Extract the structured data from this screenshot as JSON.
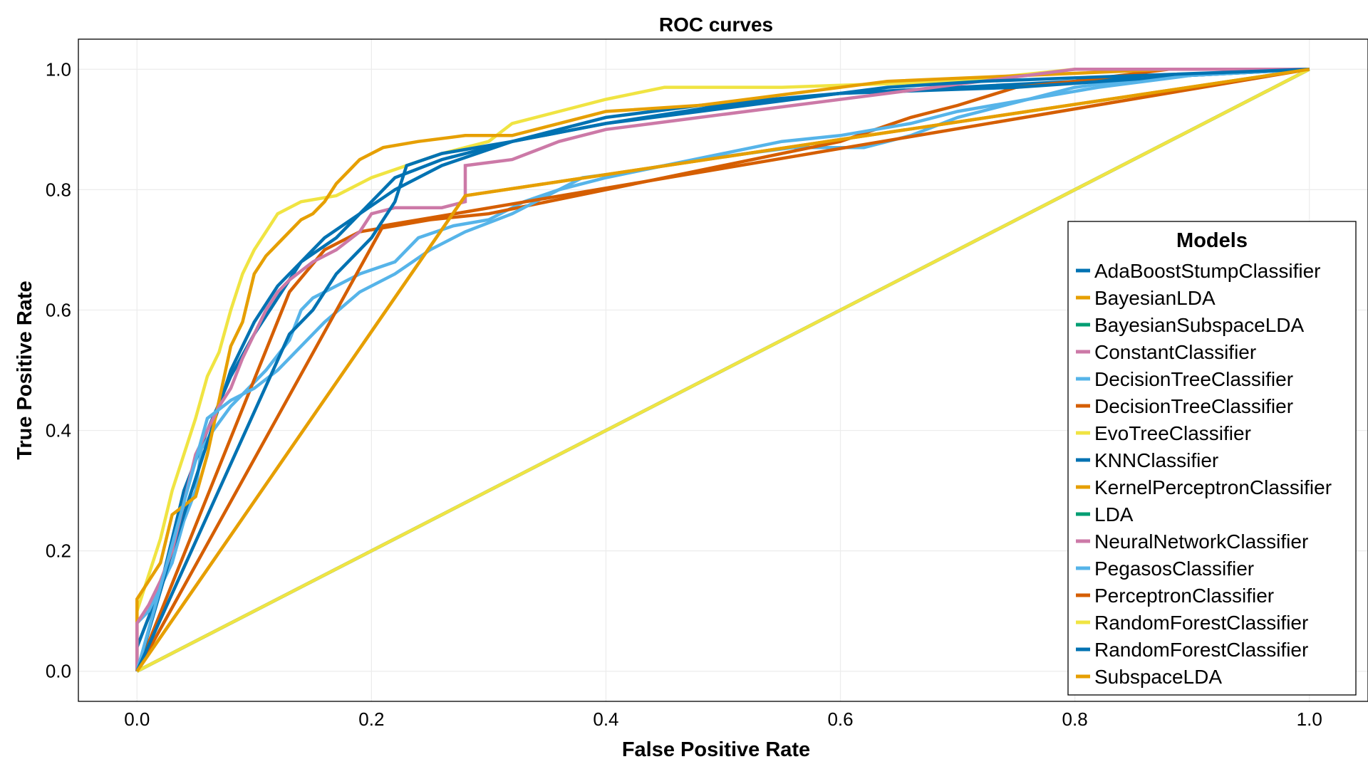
{
  "chart_data": {
    "type": "line",
    "title": "ROC curves",
    "xlabel": "False Positive Rate",
    "ylabel": "True Positive Rate",
    "xlim": [
      -0.05,
      1.05
    ],
    "ylim": [
      -0.05,
      1.05
    ],
    "xticks": [
      0.0,
      0.2,
      0.4,
      0.6,
      0.8,
      1.0
    ],
    "yticks": [
      0.0,
      0.2,
      0.4,
      0.6,
      0.8,
      1.0
    ],
    "xtick_labels": [
      "0.0",
      "0.2",
      "0.4",
      "0.6",
      "0.8",
      "1.0"
    ],
    "ytick_labels": [
      "0.0",
      "0.2",
      "0.4",
      "0.6",
      "0.8",
      "1.0"
    ],
    "grid": true,
    "legend": {
      "title": "Models",
      "position": "right, lower"
    },
    "series": [
      {
        "name": "AdaBoostStumpClassifier",
        "color": "#0072B2",
        "points": [
          [
            0,
            0
          ],
          [
            0,
            0.04
          ],
          [
            0.02,
            0.14
          ],
          [
            0.04,
            0.3
          ],
          [
            0.06,
            0.4
          ],
          [
            0.08,
            0.49
          ],
          [
            0.1,
            0.56
          ],
          [
            0.12,
            0.62
          ],
          [
            0.14,
            0.68
          ],
          [
            0.16,
            0.72
          ],
          [
            0.19,
            0.76
          ],
          [
            0.22,
            0.8
          ],
          [
            0.26,
            0.84
          ],
          [
            0.32,
            0.88
          ],
          [
            0.4,
            0.91
          ],
          [
            0.5,
            0.94
          ],
          [
            0.6,
            0.96
          ],
          [
            0.8,
            0.98
          ],
          [
            1,
            1
          ]
        ]
      },
      {
        "name": "BayesianLDA",
        "color": "#E69F00",
        "points": [
          [
            0,
            0
          ],
          [
            0.28,
            0.79
          ],
          [
            1,
            1
          ]
        ]
      },
      {
        "name": "BayesianSubspaceLDA",
        "color": "#009E73",
        "points": [
          [
            0,
            0
          ],
          [
            1,
            1
          ]
        ]
      },
      {
        "name": "ConstantClassifier",
        "color": "#CC79A7",
        "points": [
          [
            0,
            0
          ],
          [
            1,
            1
          ]
        ]
      },
      {
        "name": "DecisionTreeClassifier",
        "color": "#56B4E9",
        "points": [
          [
            0,
            0
          ],
          [
            0,
            0.08
          ],
          [
            0.01,
            0.1
          ],
          [
            0.02,
            0.14
          ],
          [
            0.03,
            0.18
          ],
          [
            0.04,
            0.25
          ],
          [
            0.05,
            0.3
          ],
          [
            0.055,
            0.37
          ],
          [
            0.065,
            0.4
          ],
          [
            0.08,
            0.44
          ],
          [
            0.1,
            0.48
          ],
          [
            0.11,
            0.5
          ],
          [
            0.13,
            0.55
          ],
          [
            0.14,
            0.6
          ],
          [
            0.15,
            0.62
          ],
          [
            0.17,
            0.64
          ],
          [
            0.19,
            0.66
          ],
          [
            0.22,
            0.68
          ],
          [
            0.24,
            0.72
          ],
          [
            0.27,
            0.74
          ],
          [
            0.3,
            0.75
          ],
          [
            0.33,
            0.78
          ],
          [
            0.36,
            0.8
          ],
          [
            0.38,
            0.82
          ],
          [
            0.42,
            0.83
          ],
          [
            0.48,
            0.85
          ],
          [
            0.52,
            0.86
          ],
          [
            0.56,
            0.87
          ],
          [
            0.62,
            0.87
          ],
          [
            0.66,
            0.89
          ],
          [
            0.7,
            0.92
          ],
          [
            0.74,
            0.94
          ],
          [
            0.8,
            0.97
          ],
          [
            0.88,
            0.99
          ],
          [
            1,
            1
          ]
        ]
      },
      {
        "name": "DecisionTreeClassifier",
        "color": "#D55E00",
        "points": [
          [
            0,
            0
          ],
          [
            0.13,
            0.63
          ],
          [
            0.16,
            0.7
          ],
          [
            0.19,
            0.73
          ],
          [
            0.22,
            0.74
          ],
          [
            0.25,
            0.75
          ],
          [
            0.3,
            0.76
          ],
          [
            0.35,
            0.78
          ],
          [
            0.4,
            0.8
          ],
          [
            0.45,
            0.82
          ],
          [
            0.5,
            0.84
          ],
          [
            0.55,
            0.86
          ],
          [
            0.6,
            0.88
          ],
          [
            0.63,
            0.9
          ],
          [
            0.66,
            0.92
          ],
          [
            0.7,
            0.94
          ],
          [
            0.75,
            0.97
          ],
          [
            0.8,
            0.98
          ],
          [
            0.88,
            1.0
          ],
          [
            1,
            1
          ]
        ]
      },
      {
        "name": "EvoTreeClassifier",
        "color": "#F0E442",
        "points": [
          [
            0,
            0
          ],
          [
            0,
            0.1
          ],
          [
            0.02,
            0.22
          ],
          [
            0.03,
            0.3
          ],
          [
            0.05,
            0.42
          ],
          [
            0.06,
            0.49
          ],
          [
            0.07,
            0.53
          ],
          [
            0.08,
            0.6
          ],
          [
            0.09,
            0.66
          ],
          [
            0.1,
            0.7
          ],
          [
            0.11,
            0.73
          ],
          [
            0.12,
            0.76
          ],
          [
            0.14,
            0.78
          ],
          [
            0.17,
            0.79
          ],
          [
            0.2,
            0.82
          ],
          [
            0.23,
            0.84
          ],
          [
            0.26,
            0.86
          ],
          [
            0.3,
            0.88
          ],
          [
            0.32,
            0.91
          ],
          [
            0.36,
            0.93
          ],
          [
            0.4,
            0.95
          ],
          [
            0.45,
            0.97
          ],
          [
            0.55,
            0.97
          ],
          [
            0.7,
            0.98
          ],
          [
            0.8,
            1.0
          ],
          [
            1,
            1
          ]
        ]
      },
      {
        "name": "KNNClassifier",
        "color": "#0072B2",
        "points": [
          [
            0,
            0
          ],
          [
            0.03,
            0.2
          ],
          [
            0.06,
            0.38
          ],
          [
            0.08,
            0.5
          ],
          [
            0.1,
            0.58
          ],
          [
            0.12,
            0.64
          ],
          [
            0.14,
            0.68
          ],
          [
            0.17,
            0.72
          ],
          [
            0.2,
            0.78
          ],
          [
            0.22,
            0.82
          ],
          [
            0.26,
            0.85
          ],
          [
            0.32,
            0.88
          ],
          [
            0.4,
            0.92
          ],
          [
            0.48,
            0.94
          ],
          [
            0.6,
            0.96
          ],
          [
            0.75,
            0.97
          ],
          [
            0.9,
            0.99
          ],
          [
            1,
            1
          ]
        ]
      },
      {
        "name": "KernelPerceptronClassifier",
        "color": "#E69F00",
        "points": [
          [
            0,
            0
          ],
          [
            0,
            0.12
          ],
          [
            0.02,
            0.18
          ],
          [
            0.03,
            0.26
          ],
          [
            0.05,
            0.29
          ],
          [
            0.06,
            0.36
          ],
          [
            0.07,
            0.45
          ],
          [
            0.08,
            0.54
          ],
          [
            0.09,
            0.58
          ],
          [
            0.1,
            0.66
          ],
          [
            0.11,
            0.69
          ],
          [
            0.12,
            0.71
          ],
          [
            0.13,
            0.73
          ],
          [
            0.14,
            0.75
          ],
          [
            0.15,
            0.76
          ],
          [
            0.16,
            0.78
          ],
          [
            0.17,
            0.81
          ],
          [
            0.18,
            0.83
          ],
          [
            0.19,
            0.85
          ],
          [
            0.21,
            0.87
          ],
          [
            0.24,
            0.88
          ],
          [
            0.28,
            0.89
          ],
          [
            0.32,
            0.89
          ],
          [
            0.36,
            0.91
          ],
          [
            0.4,
            0.93
          ],
          [
            0.48,
            0.94
          ],
          [
            0.56,
            0.96
          ],
          [
            0.64,
            0.98
          ],
          [
            0.76,
            0.99
          ],
          [
            0.88,
            1.0
          ],
          [
            1,
            1
          ]
        ]
      },
      {
        "name": "LDA",
        "color": "#009E73",
        "points": [
          [
            0,
            0
          ],
          [
            1,
            1
          ]
        ]
      },
      {
        "name": "NeuralNetworkClassifier",
        "color": "#CC79A7",
        "points": [
          [
            0,
            0
          ],
          [
            0,
            0.08
          ],
          [
            0.01,
            0.11
          ],
          [
            0.02,
            0.15
          ],
          [
            0.03,
            0.2
          ],
          [
            0.04,
            0.28
          ],
          [
            0.05,
            0.36
          ],
          [
            0.06,
            0.4
          ],
          [
            0.07,
            0.44
          ],
          [
            0.08,
            0.47
          ],
          [
            0.09,
            0.52
          ],
          [
            0.1,
            0.56
          ],
          [
            0.11,
            0.6
          ],
          [
            0.12,
            0.63
          ],
          [
            0.13,
            0.65
          ],
          [
            0.15,
            0.68
          ],
          [
            0.17,
            0.7
          ],
          [
            0.19,
            0.73
          ],
          [
            0.2,
            0.76
          ],
          [
            0.22,
            0.77
          ],
          [
            0.26,
            0.77
          ],
          [
            0.28,
            0.78
          ],
          [
            0.28,
            0.84
          ],
          [
            0.32,
            0.85
          ],
          [
            0.36,
            0.88
          ],
          [
            0.4,
            0.9
          ],
          [
            0.44,
            0.91
          ],
          [
            0.48,
            0.92
          ],
          [
            0.56,
            0.94
          ],
          [
            0.64,
            0.96
          ],
          [
            0.72,
            0.98
          ],
          [
            0.8,
            1.0
          ],
          [
            1,
            1
          ]
        ]
      },
      {
        "name": "PegasosClassifier",
        "color": "#56B4E9",
        "points": [
          [
            0,
            0
          ],
          [
            0.06,
            0.42
          ],
          [
            0.08,
            0.45
          ],
          [
            0.1,
            0.47
          ],
          [
            0.12,
            0.5
          ],
          [
            0.14,
            0.54
          ],
          [
            0.16,
            0.58
          ],
          [
            0.19,
            0.63
          ],
          [
            0.22,
            0.66
          ],
          [
            0.25,
            0.7
          ],
          [
            0.28,
            0.73
          ],
          [
            0.32,
            0.76
          ],
          [
            0.36,
            0.8
          ],
          [
            0.4,
            0.82
          ],
          [
            0.45,
            0.84
          ],
          [
            0.5,
            0.86
          ],
          [
            0.55,
            0.88
          ],
          [
            0.6,
            0.89
          ],
          [
            0.66,
            0.91
          ],
          [
            0.7,
            0.93
          ],
          [
            0.76,
            0.95
          ],
          [
            0.82,
            0.97
          ],
          [
            0.9,
            0.99
          ],
          [
            1,
            1
          ]
        ]
      },
      {
        "name": "PerceptronClassifier",
        "color": "#D55E00",
        "points": [
          [
            0,
            0
          ],
          [
            0.21,
            0.74
          ],
          [
            1,
            1
          ]
        ]
      },
      {
        "name": "RandomForestClassifier",
        "color": "#F0E442",
        "points": [
          [
            0,
            0
          ],
          [
            1,
            1
          ]
        ]
      },
      {
        "name": "RandomForestClassifier",
        "color": "#0072B2",
        "points": [
          [
            0,
            0
          ],
          [
            0.13,
            0.56
          ],
          [
            0.15,
            0.6
          ],
          [
            0.17,
            0.66
          ],
          [
            0.2,
            0.72
          ],
          [
            0.22,
            0.78
          ],
          [
            0.23,
            0.84
          ],
          [
            0.26,
            0.86
          ],
          [
            0.32,
            0.88
          ],
          [
            0.4,
            0.91
          ],
          [
            0.48,
            0.93
          ],
          [
            0.56,
            0.95
          ],
          [
            0.64,
            0.97
          ],
          [
            0.72,
            0.98
          ],
          [
            0.86,
            0.99
          ],
          [
            1,
            1
          ]
        ]
      },
      {
        "name": "SubspaceLDA",
        "color": "#E69F00",
        "points": [
          [
            0,
            0
          ],
          [
            0.28,
            0.79
          ],
          [
            1,
            1
          ]
        ]
      }
    ]
  }
}
